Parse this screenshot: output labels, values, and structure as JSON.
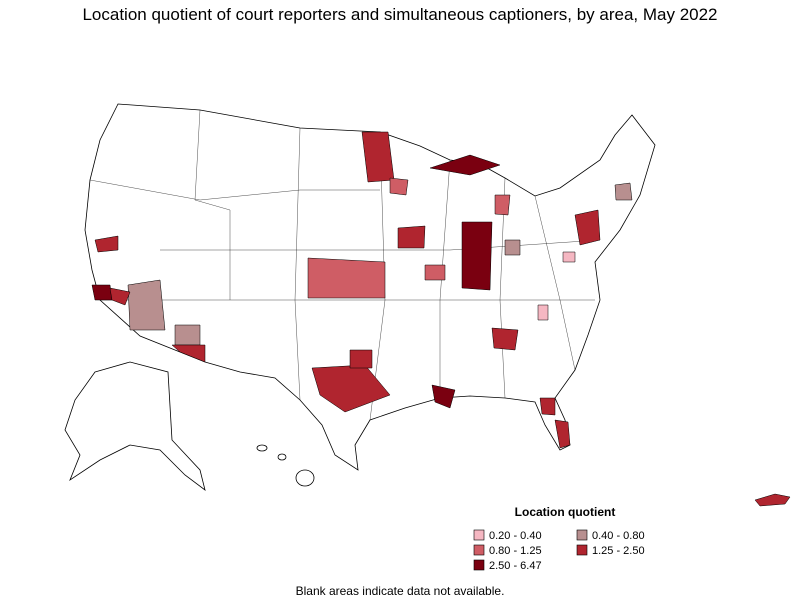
{
  "title": "Location quotient of court reporters and simultaneous captioners, by area, May 2022",
  "legend": {
    "title": "Location quotient",
    "items": [
      {
        "label": "0.20 - 0.40",
        "color": "#f5b7c2"
      },
      {
        "label": "0.40 - 0.80",
        "color": "#b88f8f"
      },
      {
        "label": "0.80 - 1.25",
        "color": "#cf5d65"
      },
      {
        "label": "1.25 - 2.50",
        "color": "#b0252f"
      },
      {
        "label": "2.50 - 6.47",
        "color": "#7a0010"
      }
    ]
  },
  "note": "Blank areas indicate data not available."
}
